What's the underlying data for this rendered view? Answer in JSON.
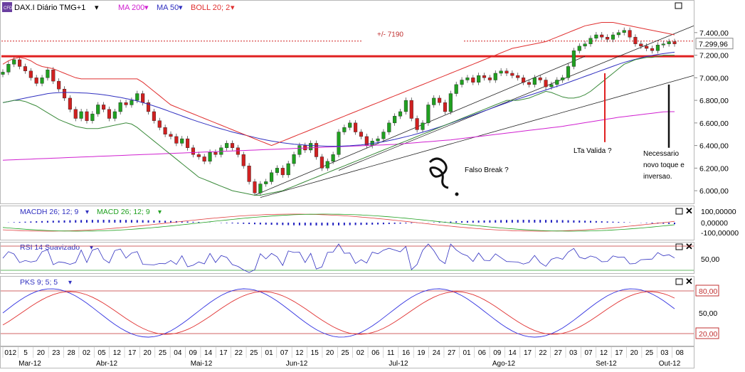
{
  "header": {
    "symbol": "DAX.I Diário TMG+1",
    "ma200": "MA 200",
    "ma50": "MA 50",
    "boll": "BOLL 20; 2",
    "colors": {
      "ma200": "#d020d0",
      "ma50": "#3030c0",
      "boll": "#e03030",
      "candle_up": "#20a020",
      "candle_down": "#d02020"
    }
  },
  "chart_data": [
    {
      "type": "candlestick",
      "ylim": [
        5900,
        7550
      ],
      "y_ticks": [
        "7.400,00",
        "7.200,00",
        "7.000,00",
        "6.800,00",
        "6.600,00",
        "6.400,00",
        "6.200,00",
        "6.000,00"
      ],
      "y_tick_values": [
        7400,
        7200,
        7000,
        6800,
        6600,
        6400,
        6200,
        6000
      ],
      "last_price_label": "7.299,96",
      "last_price": 7299.96,
      "closes": [
        7050,
        7120,
        7160,
        7100,
        7060,
        7000,
        6950,
        7000,
        7070,
        6970,
        6900,
        6820,
        6720,
        6640,
        6700,
        6620,
        6680,
        6760,
        6720,
        6640,
        6700,
        6780,
        6760,
        6800,
        6860,
        6780,
        6700,
        6620,
        6560,
        6500,
        6480,
        6420,
        6460,
        6380,
        6320,
        6300,
        6260,
        6340,
        6320,
        6380,
        6420,
        6380,
        6320,
        6220,
        6080,
        5980,
        6060,
        6080,
        6160,
        6200,
        6140,
        6240,
        6320,
        6400,
        6360,
        6420,
        6300,
        6200,
        6260,
        6320,
        6520,
        6560,
        6600,
        6520,
        6480,
        6400,
        6440,
        6460,
        6520,
        6600,
        6660,
        6700,
        6800,
        6640,
        6540,
        6600,
        6760,
        6820,
        6780,
        6700,
        6860,
        6940,
        6980,
        7000,
        6960,
        7020,
        7000,
        6980,
        7040,
        7060,
        7040,
        7020,
        7000,
        6960,
        6940,
        7000,
        6980,
        6920,
        6940,
        6980,
        7000,
        7100,
        7240,
        7280,
        7300,
        7350,
        7380,
        7360,
        7340,
        7380,
        7400,
        7420,
        7360,
        7300,
        7280,
        7260,
        7240,
        7290,
        7300,
        7320,
        7300
      ],
      "boll_upper": [
        7120,
        7150,
        7170,
        7180,
        7170,
        7150,
        7120,
        7100,
        7090,
        7080,
        7060,
        7040,
        7020,
        7000,
        6990,
        6990,
        6990,
        6990,
        6990,
        6990,
        6990,
        6990,
        6990,
        6990,
        6990,
        6960,
        6920,
        6880,
        6840,
        6800,
        6760,
        6740,
        6720,
        6700,
        6680,
        6660,
        6640,
        6620,
        6600,
        6580,
        6560,
        6540,
        6520,
        6500,
        6480,
        6460,
        6440,
        6420,
        6400,
        6420,
        6440,
        6460,
        6480,
        6500,
        6520,
        6540,
        6560,
        6580,
        6600,
        6620,
        6640,
        6660,
        6680,
        6700,
        6720,
        6740,
        6760,
        6780,
        6800,
        6820,
        6840,
        6860,
        6880,
        6900,
        6920,
        6940,
        6960,
        6980,
        7000,
        7020,
        7040,
        7060,
        7080,
        7100,
        7120,
        7140,
        7160,
        7180,
        7200,
        7220,
        7240,
        7260,
        7270,
        7280,
        7290,
        7300,
        7310,
        7320,
        7340,
        7360,
        7380,
        7400,
        7420,
        7440,
        7460,
        7470,
        7480,
        7490,
        7490,
        7490,
        7480,
        7470,
        7460,
        7450,
        7440,
        7430,
        7420,
        7410,
        7400,
        7390,
        7380
      ],
      "boll_lower": [
        6780,
        6790,
        6800,
        6800,
        6790,
        6770,
        6750,
        6720,
        6690,
        6660,
        6630,
        6610,
        6590,
        6570,
        6560,
        6550,
        6550,
        6550,
        6560,
        6570,
        6580,
        6590,
        6600,
        6590,
        6560,
        6520,
        6480,
        6440,
        6400,
        6360,
        6320,
        6280,
        6240,
        6200,
        6160,
        6120,
        6100,
        6080,
        6060,
        6040,
        6020,
        6000,
        5990,
        5980,
        5970,
        5960,
        5960,
        5970,
        5980,
        5990,
        6000,
        6020,
        6040,
        6060,
        6080,
        6100,
        6120,
        6140,
        6160,
        6180,
        6200,
        6220,
        6240,
        6260,
        6280,
        6300,
        6320,
        6340,
        6360,
        6380,
        6400,
        6420,
        6440,
        6460,
        6480,
        6500,
        6520,
        6540,
        6560,
        6580,
        6600,
        6620,
        6640,
        6660,
        6680,
        6700,
        6720,
        6740,
        6760,
        6780,
        6800,
        6800,
        6800,
        6810,
        6820,
        6840,
        6860,
        6880,
        6870,
        6850,
        6830,
        6820,
        6820,
        6830,
        6850,
        6880,
        6920,
        6960,
        7000,
        7040,
        7080,
        7120,
        7140,
        7160,
        7170,
        7180,
        7180,
        7190,
        7200,
        7200,
        7200
      ],
      "ma50": [
        6780,
        6790,
        6800,
        6810,
        6820,
        6830,
        6840,
        6850,
        6860,
        6865,
        6868,
        6870,
        6870,
        6868,
        6866,
        6864,
        6860,
        6856,
        6850,
        6842,
        6834,
        6826,
        6816,
        6806,
        6794,
        6780,
        6766,
        6750,
        6734,
        6716,
        6698,
        6680,
        6662,
        6644,
        6626,
        6610,
        6594,
        6578,
        6562,
        6548,
        6534,
        6520,
        6508,
        6496,
        6484,
        6472,
        6460,
        6450,
        6440,
        6432,
        6424,
        6418,
        6412,
        6408,
        6404,
        6400,
        6398,
        6396,
        6394,
        6394,
        6394,
        6396,
        6398,
        6402,
        6406,
        6412,
        6418,
        6426,
        6434,
        6444,
        6454,
        6466,
        6478,
        6490,
        6504,
        6518,
        6532,
        6548,
        6564,
        6580,
        6598,
        6616,
        6634,
        6652,
        6670,
        6688,
        6706,
        6724,
        6742,
        6760,
        6778,
        6796,
        6812,
        6828,
        6844,
        6860,
        6876,
        6892,
        6908,
        6924,
        6940,
        6958,
        6976,
        6994,
        7012,
        7030,
        7048,
        7066,
        7084,
        7102,
        7120,
        7136,
        7150,
        7164,
        7176,
        7188,
        7198,
        7206,
        7214,
        7220,
        7226
      ],
      "ma200": [
        6270,
        6272,
        6274,
        6276,
        6278,
        6280,
        6282,
        6284,
        6286,
        6288,
        6290,
        6292,
        6294,
        6296,
        6298,
        6300,
        6302,
        6304,
        6306,
        6308,
        6310,
        6312,
        6314,
        6316,
        6318,
        6320,
        6322,
        6324,
        6326,
        6328,
        6330,
        6332,
        6334,
        6336,
        6338,
        6340,
        6342,
        6344,
        6346,
        6348,
        6350,
        6352,
        6354,
        6356,
        6358,
        6360,
        6362,
        6364,
        6366,
        6368,
        6370,
        6372,
        6374,
        6376,
        6378,
        6380,
        6382,
        6384,
        6386,
        6388,
        6390,
        6392,
        6394,
        6396,
        6398,
        6400,
        6402,
        6404,
        6406,
        6408,
        6410,
        6414,
        6418,
        6422,
        6426,
        6430,
        6434,
        6438,
        6442,
        6446,
        6450,
        6456,
        6462,
        6468,
        6474,
        6480,
        6486,
        6492,
        6498,
        6504,
        6510,
        6516,
        6522,
        6528,
        6534,
        6540,
        6546,
        6552,
        6558,
        6564,
        6570,
        6578,
        6586,
        6594,
        6602,
        6610,
        6618,
        6626,
        6634,
        6642,
        6650,
        6656,
        6662,
        6668,
        6674,
        6680,
        6686,
        6692,
        6698,
        6700,
        6700
      ]
    },
    {
      "type": "line",
      "name": "MACD",
      "ylim": [
        -100,
        100
      ],
      "y_ticks": [
        "100,00000",
        "0,00000",
        "-100,00000"
      ],
      "y_tick_values": [
        100,
        0,
        -100
      ]
    },
    {
      "type": "line",
      "name": "RSI",
      "ylim": [
        0,
        100
      ],
      "y_ticks": [
        "50,00"
      ],
      "y_tick_values": [
        50
      ]
    },
    {
      "type": "line",
      "name": "PKS",
      "ylim": [
        0,
        100
      ],
      "y_ticks": [
        "80,00",
        "50,00",
        "20,00"
      ],
      "y_tick_values": [
        80,
        50,
        20
      ]
    }
  ],
  "annotations": {
    "level": "+/- 7190",
    "falso_break": "Falso Break ?",
    "lta": "LTa Valida ?",
    "necessario": [
      "Necessario",
      "novo toque e",
      "inversao."
    ]
  },
  "panels": {
    "macd": {
      "label1": "MACDH 26; 12; 9",
      "label2": "MACD 26; 12; 9"
    },
    "rsi": {
      "label": "RSI 14 Suavizado"
    },
    "pks": {
      "label": "PKS 9; 5; 5"
    }
  },
  "x_axis": {
    "days": [
      "012",
      "5",
      "20",
      "23",
      "28",
      "02",
      "05",
      "12",
      "17",
      "20",
      "25",
      "04",
      "09",
      "14",
      "17",
      "22",
      "25",
      "01",
      "07",
      "12",
      "15",
      "20",
      "25",
      "02",
      "06",
      "11",
      "16",
      "19",
      "24",
      "27",
      "01",
      "06",
      "09",
      "14",
      "17",
      "22",
      "27",
      "03",
      "07",
      "12",
      "17",
      "20",
      "25",
      "03",
      "08"
    ],
    "months": [
      "Mar-12",
      "Abr-12",
      "Mai-12",
      "Jun-12",
      "Jul-12",
      "Ago-12",
      "Set-12",
      "Out-12"
    ]
  }
}
